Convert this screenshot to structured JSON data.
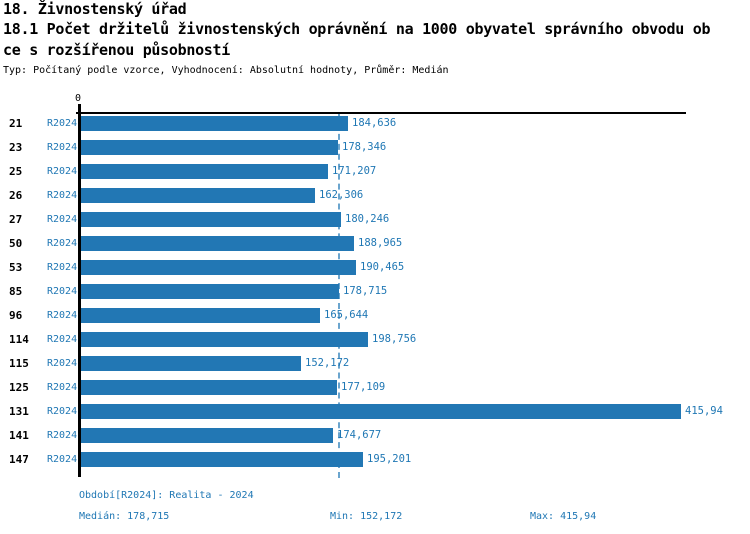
{
  "header": {
    "title_line1": "18. Živnostenský úřad",
    "title_line2": "18.1 Počet držitelů živnostenských oprávnění na 1000 obyvatel správního obvodu ob",
    "title_line3": "ce s rozšířenou působností",
    "meta_line": "Typ: Počítaný podle vzorce, Vyhodnocení: Absolutní hodnoty, Průměr: Medián"
  },
  "chart_data": {
    "type": "bar",
    "orientation": "horizontal",
    "title": "18.1 Počet držitelů živnostenských oprávnění na 1000 obyvatel správního obvodu obce s rozšířenou působností",
    "categories": [
      "21",
      "23",
      "25",
      "26",
      "27",
      "50",
      "53",
      "85",
      "96",
      "114",
      "115",
      "125",
      "131",
      "141",
      "147"
    ],
    "series": [
      {
        "name": "R2024",
        "values": [
          184.636,
          178.346,
          171.207,
          162.306,
          180.246,
          188.965,
          190.465,
          178.715,
          165.644,
          198.756,
          152.172,
          177.109,
          415.94,
          174.677,
          195.201
        ]
      }
    ],
    "value_labels": [
      "184,636",
      "178,346",
      "171,207",
      "162,306",
      "180,246",
      "188,965",
      "190,465",
      "178,715",
      "165,644",
      "198,756",
      "152,172",
      "177,109",
      "415,94",
      "174,677",
      "195,201"
    ],
    "axis_origin_label": "0",
    "xlabel": "",
    "ylabel": "",
    "xlim": [
      0,
      419
    ],
    "grid": false,
    "legend_position": "none",
    "median_line_value": 178.715
  },
  "footer": {
    "period_label": "Období[R2024]: Realita - 2024",
    "median_label": "Medián: 178,715",
    "min_label": "Min: 152,172",
    "max_label": "Max: 415,94"
  },
  "colors": {
    "bar": "#2277B4",
    "text_blue": "#1F77B4",
    "median_line": "#6BA5CE",
    "axis": "#000000"
  }
}
